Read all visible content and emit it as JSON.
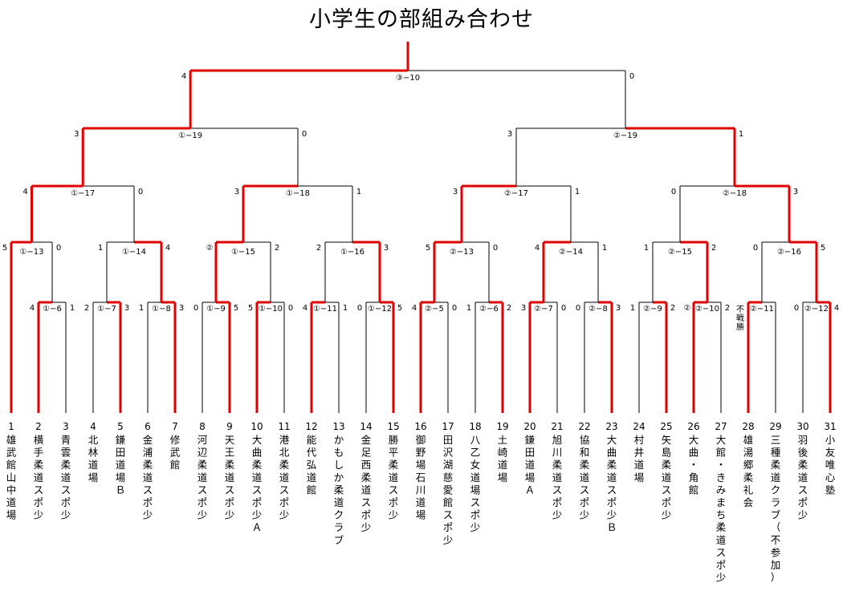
{
  "title": "小学生の部組み合わせ",
  "teams": [
    {
      "seed": "1",
      "name": "雄武館山中道場"
    },
    {
      "seed": "2",
      "name": "横手柔道スポ少"
    },
    {
      "seed": "3",
      "name": "青雲柔道スポ少"
    },
    {
      "seed": "4",
      "name": "北林道場"
    },
    {
      "seed": "5",
      "name": "鎌田道場Ｂ"
    },
    {
      "seed": "6",
      "name": "金浦柔道スポ少"
    },
    {
      "seed": "7",
      "name": "修武館"
    },
    {
      "seed": "8",
      "name": "河辺柔道スポ少"
    },
    {
      "seed": "9",
      "name": "天王柔道スポ少"
    },
    {
      "seed": "10",
      "name": "大曲柔道スポ少Ａ"
    },
    {
      "seed": "11",
      "name": "港北柔道スポ少"
    },
    {
      "seed": "12",
      "name": "能代弘道館"
    },
    {
      "seed": "13",
      "name": "かもしか柔道クラブ"
    },
    {
      "seed": "14",
      "name": "金足西柔道スポ少"
    },
    {
      "seed": "15",
      "name": "勝平柔道スポ少"
    },
    {
      "seed": "16",
      "name": "御野場石川道場"
    },
    {
      "seed": "17",
      "name": "田沢湖慈愛館スポ少"
    },
    {
      "seed": "18",
      "name": "八乙女道場スポ少"
    },
    {
      "seed": "19",
      "name": "土崎道場"
    },
    {
      "seed": "20",
      "name": "鎌田道場Ａ"
    },
    {
      "seed": "21",
      "name": "旭川柔道スポ少"
    },
    {
      "seed": "22",
      "name": "協和柔道スポ少"
    },
    {
      "seed": "23",
      "name": "大曲柔道スポ少Ｂ"
    },
    {
      "seed": "24",
      "name": "村井道場"
    },
    {
      "seed": "25",
      "name": "矢島柔道スポ少"
    },
    {
      "seed": "26",
      "name": "大曲・角館"
    },
    {
      "seed": "27",
      "name": "大館・きみまち柔道スポ少"
    },
    {
      "seed": "28",
      "name": "雄湯郷柔礼会"
    },
    {
      "seed": "29",
      "name": "三種柔道クラブ（不参加）"
    },
    {
      "seed": "30",
      "name": "羽後柔道スポ少"
    },
    {
      "seed": "31",
      "name": "小友唯心塾"
    }
  ],
  "matches": [
    {
      "label": "①−6",
      "left": "4",
      "right": "1"
    },
    {
      "label": "①−7",
      "left": "2",
      "right": "3"
    },
    {
      "label": "①−8",
      "left": "1",
      "right": "3"
    },
    {
      "label": "①−9",
      "left": "0",
      "right": "5"
    },
    {
      "label": "①−10",
      "left": "5",
      "right": "0"
    },
    {
      "label": "①−11",
      "left": "4",
      "right": "1"
    },
    {
      "label": "①−12",
      "left": "0",
      "right": "5"
    },
    {
      "label": "②−5",
      "left": "4",
      "right": "0"
    },
    {
      "label": "②−6",
      "left": "1",
      "right": "2"
    },
    {
      "label": "②−7",
      "left": "3",
      "right": "0"
    },
    {
      "label": "②−8",
      "left": "0",
      "right": "3"
    },
    {
      "label": "②−9",
      "left": "1",
      "right": "2"
    },
    {
      "label": "②−10",
      "left": "②",
      "right": "2"
    },
    {
      "label": "②−11",
      "left": "不戦勝",
      "right": ""
    },
    {
      "label": "②−12",
      "left": "0",
      "right": "4"
    },
    {
      "label": "①−13",
      "left": "5",
      "right": "0"
    },
    {
      "label": "①−14",
      "left": "1",
      "right": "4"
    },
    {
      "label": "①−15",
      "left": "②",
      "right": "2"
    },
    {
      "label": "①−16",
      "left": "2",
      "right": "3"
    },
    {
      "label": "②−13",
      "left": "5",
      "right": "0"
    },
    {
      "label": "②−14",
      "left": "4",
      "right": "1"
    },
    {
      "label": "②−15",
      "left": "1",
      "right": "2"
    },
    {
      "label": "②−16",
      "left": "0",
      "right": "5"
    },
    {
      "label": "①−17",
      "left": "4",
      "right": "0"
    },
    {
      "label": "①−18",
      "left": "3",
      "right": "1"
    },
    {
      "label": "②−17",
      "left": "3",
      "right": "1"
    },
    {
      "label": "②−18",
      "left": "0",
      "right": "3"
    },
    {
      "label": "①−19",
      "left": "3",
      "right": "0"
    },
    {
      "label": "②−19",
      "left": "3",
      "right": "1"
    },
    {
      "label": "③−10",
      "left": "4",
      "right": "0"
    }
  ]
}
